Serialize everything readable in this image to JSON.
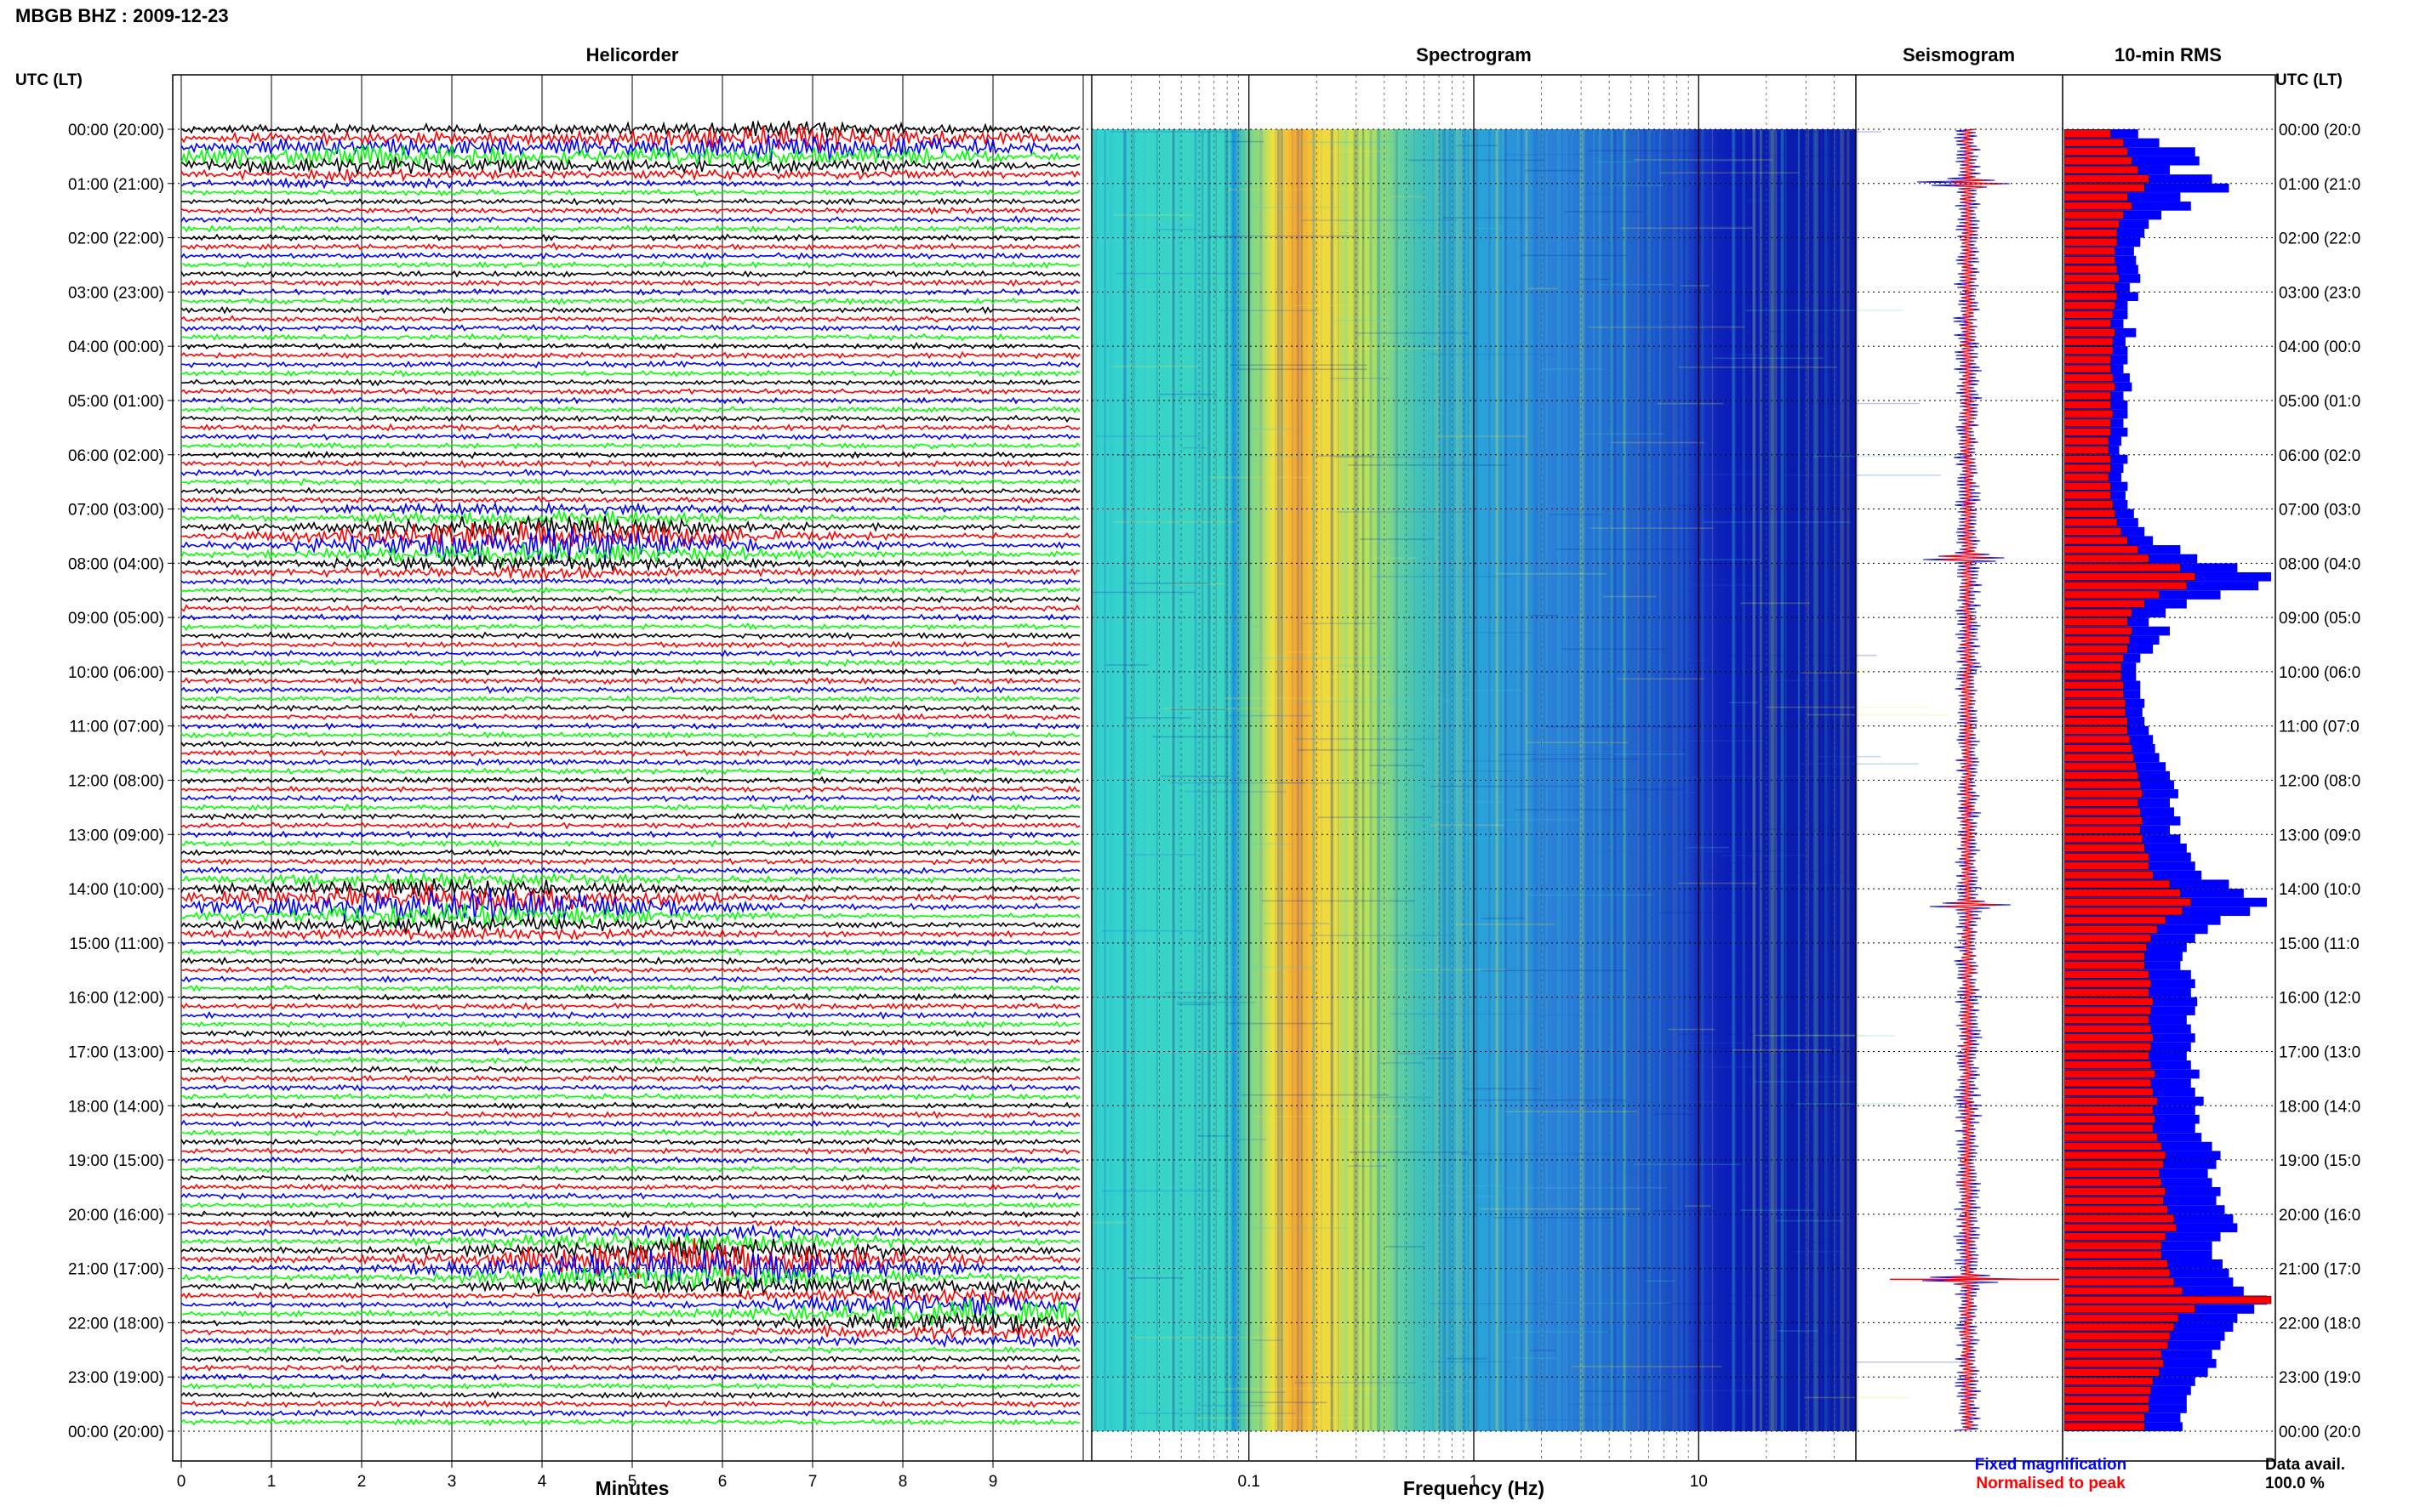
{
  "header": {
    "station_title": "MBGB BHZ : 2009-12-23"
  },
  "panels": {
    "helicorder_title": "Helicorder",
    "spectrogram_title": "Spectrogram",
    "seismogram_title": "Seismogram",
    "rms_title": "10-min RMS"
  },
  "axes": {
    "left_header": "UTC (LT)",
    "right_header": "UTC (LT)",
    "time_labels": [
      "00:00 (20:00)",
      "01:00 (21:00)",
      "02:00 (22:00)",
      "03:00 (23:00)",
      "04:00 (00:00)",
      "05:00 (01:00)",
      "06:00 (02:00)",
      "07:00 (03:00)",
      "08:00 (04:00)",
      "09:00 (05:00)",
      "10:00 (06:00)",
      "11:00 (07:00)",
      "12:00 (08:00)",
      "13:00 (09:00)",
      "14:00 (10:00)",
      "15:00 (11:00)",
      "16:00 (12:00)",
      "17:00 (13:00)",
      "18:00 (14:00)",
      "19:00 (15:00)",
      "20:00 (16:00)",
      "21:00 (17:00)",
      "22:00 (18:00)",
      "23:00 (19:00)",
      "00:00 (20:00)"
    ],
    "right_time_labels": [
      "00:00 (20:0",
      "01:00 (21:0",
      "02:00 (22:0",
      "03:00 (23:0",
      "04:00 (00:0",
      "05:00 (01:0",
      "06:00 (02:0",
      "07:00 (03:0",
      "08:00 (04:0",
      "09:00 (05:0",
      "10:00 (06:0",
      "11:00 (07:0",
      "12:00 (08:0",
      "13:00 (09:0",
      "14:00 (10:0",
      "15:00 (11:0",
      "16:00 (12:0",
      "17:00 (13:0",
      "18:00 (14:0",
      "19:00 (15:0",
      "20:00 (16:0",
      "21:00 (17:0",
      "22:00 (18:0",
      "23:00 (19:0",
      "00:00 (20:0"
    ],
    "minutes_ticks": [
      "0",
      "1",
      "2",
      "3",
      "4",
      "5",
      "6",
      "7",
      "8",
      "9"
    ],
    "minutes_label": "Minutes",
    "freq_ticks": [
      "0.1",
      "1",
      "10"
    ],
    "freq_label": "Frequency (Hz)"
  },
  "legend": {
    "fixed": "Fixed magnification",
    "normalised": "Normalised to peak",
    "fixed_color": "#0000ff",
    "normalised_color": "#ff0000",
    "data_avail_label": "Data avail.",
    "data_avail_value": "100.0 %"
  },
  "colors": {
    "helicorder_cycle": [
      "#000000",
      "#ff0000",
      "#0000ff",
      "#00ff00"
    ],
    "rms_fixed": "#0000ff",
    "rms_normalised": "#ff0000",
    "seismo_fixed": "#0000ff",
    "seismo_normalised": "#ff0000"
  },
  "chart_data": [
    {
      "type": "line",
      "name": "helicorder",
      "x_range_minutes": [
        0,
        10
      ],
      "rows_per_hour": 6,
      "hours": 24,
      "events": [
        {
          "hour": 0.3,
          "minute": 6.8,
          "amp": 3
        },
        {
          "hour": 0.5,
          "minute": 2.0,
          "amp": 2
        },
        {
          "hour": 7.6,
          "minute": 4.0,
          "amp": 4
        },
        {
          "hour": 14.3,
          "minute": 3.0,
          "amp": 4
        },
        {
          "hour": 20.9,
          "minute": 5.7,
          "amp": 5
        },
        {
          "hour": 21.8,
          "minute": 9.0,
          "amp": 3
        }
      ]
    },
    {
      "type": "heatmap",
      "name": "spectrogram",
      "x_scale": "log",
      "x_range_hz": [
        0.02,
        50
      ],
      "low_end_band_hz": [
        0.02,
        0.11
      ],
      "microseism_peak_hz": [
        0.15,
        0.4
      ],
      "highfreq_cutoff_hz": 12
    },
    {
      "type": "bar",
      "name": "10-min RMS",
      "series": [
        {
          "name": "Fixed magnification",
          "values": [
            0.35,
            0.45,
            0.62,
            0.64,
            0.5,
            0.7,
            0.78,
            0.55,
            0.6,
            0.46,
            0.4,
            0.38,
            0.36,
            0.33,
            0.34,
            0.35,
            0.36,
            0.31,
            0.35,
            0.3,
            0.3,
            0.28,
            0.34,
            0.29,
            0.3,
            0.3,
            0.28,
            0.31,
            0.32,
            0.28,
            0.3,
            0.3,
            0.28,
            0.3,
            0.27,
            0.26,
            0.3,
            0.28,
            0.27,
            0.3,
            0.29,
            0.3,
            0.33,
            0.35,
            0.38,
            0.42,
            0.55,
            0.63,
            0.82,
            0.98,
            0.92,
            0.74,
            0.58,
            0.48,
            0.4,
            0.5,
            0.45,
            0.42,
            0.36,
            0.34,
            0.34,
            0.36,
            0.36,
            0.38,
            0.37,
            0.38,
            0.4,
            0.42,
            0.43,
            0.45,
            0.48,
            0.5,
            0.52,
            0.54,
            0.5,
            0.52,
            0.55,
            0.5,
            0.55,
            0.58,
            0.6,
            0.62,
            0.65,
            0.78,
            0.85,
            0.96,
            0.88,
            0.74,
            0.68,
            0.62,
            0.58,
            0.56,
            0.55,
            0.6,
            0.62,
            0.6,
            0.63,
            0.62,
            0.58,
            0.6,
            0.62,
            0.6,
            0.58,
            0.6,
            0.64,
            0.6,
            0.62,
            0.66,
            0.62,
            0.64,
            0.62,
            0.65,
            0.7,
            0.74,
            0.72,
            0.68,
            0.7,
            0.74,
            0.72,
            0.76,
            0.8,
            0.82,
            0.74,
            0.7,
            0.7,
            0.75,
            0.78,
            0.8,
            0.85,
            0.96,
            0.9,
            0.82,
            0.8,
            0.76,
            0.74,
            0.7,
            0.72,
            0.68,
            0.62,
            0.6,
            0.58,
            0.58,
            0.55,
            0.56
          ]
        },
        {
          "name": "Normalised to peak",
          "values": [
            0.22,
            0.28,
            0.3,
            0.32,
            0.35,
            0.4,
            0.38,
            0.3,
            0.32,
            0.28,
            0.26,
            0.25,
            0.25,
            0.24,
            0.24,
            0.25,
            0.26,
            0.24,
            0.25,
            0.24,
            0.23,
            0.22,
            0.24,
            0.23,
            0.23,
            0.22,
            0.22,
            0.23,
            0.24,
            0.22,
            0.22,
            0.23,
            0.22,
            0.22,
            0.21,
            0.21,
            0.22,
            0.22,
            0.21,
            0.22,
            0.22,
            0.23,
            0.24,
            0.25,
            0.27,
            0.3,
            0.35,
            0.4,
            0.55,
            0.62,
            0.58,
            0.45,
            0.38,
            0.32,
            0.3,
            0.32,
            0.31,
            0.3,
            0.28,
            0.27,
            0.27,
            0.28,
            0.28,
            0.29,
            0.29,
            0.3,
            0.3,
            0.31,
            0.32,
            0.33,
            0.34,
            0.35,
            0.36,
            0.37,
            0.35,
            0.36,
            0.37,
            0.36,
            0.37,
            0.38,
            0.4,
            0.4,
            0.42,
            0.5,
            0.55,
            0.6,
            0.56,
            0.48,
            0.44,
            0.41,
            0.39,
            0.38,
            0.38,
            0.4,
            0.41,
            0.4,
            0.42,
            0.41,
            0.4,
            0.41,
            0.42,
            0.41,
            0.4,
            0.41,
            0.43,
            0.41,
            0.42,
            0.44,
            0.42,
            0.43,
            0.42,
            0.44,
            0.46,
            0.48,
            0.47,
            0.45,
            0.46,
            0.48,
            0.47,
            0.49,
            0.52,
            0.53,
            0.48,
            0.46,
            0.46,
            0.49,
            0.5,
            0.52,
            0.56,
            0.98,
            0.62,
            0.54,
            0.52,
            0.5,
            0.49,
            0.46,
            0.47,
            0.45,
            0.42,
            0.41,
            0.4,
            0.4,
            0.38,
            0.38
          ]
        }
      ]
    },
    {
      "type": "line",
      "name": "seismogram",
      "series": [
        {
          "name": "Fixed magnification",
          "peaks_hour": [
            1.0,
            7.9,
            14.3,
            21.2
          ]
        },
        {
          "name": "Normalised to peak",
          "peaks_hour": [
            1.0,
            7.9,
            14.3,
            21.2
          ]
        }
      ]
    }
  ]
}
